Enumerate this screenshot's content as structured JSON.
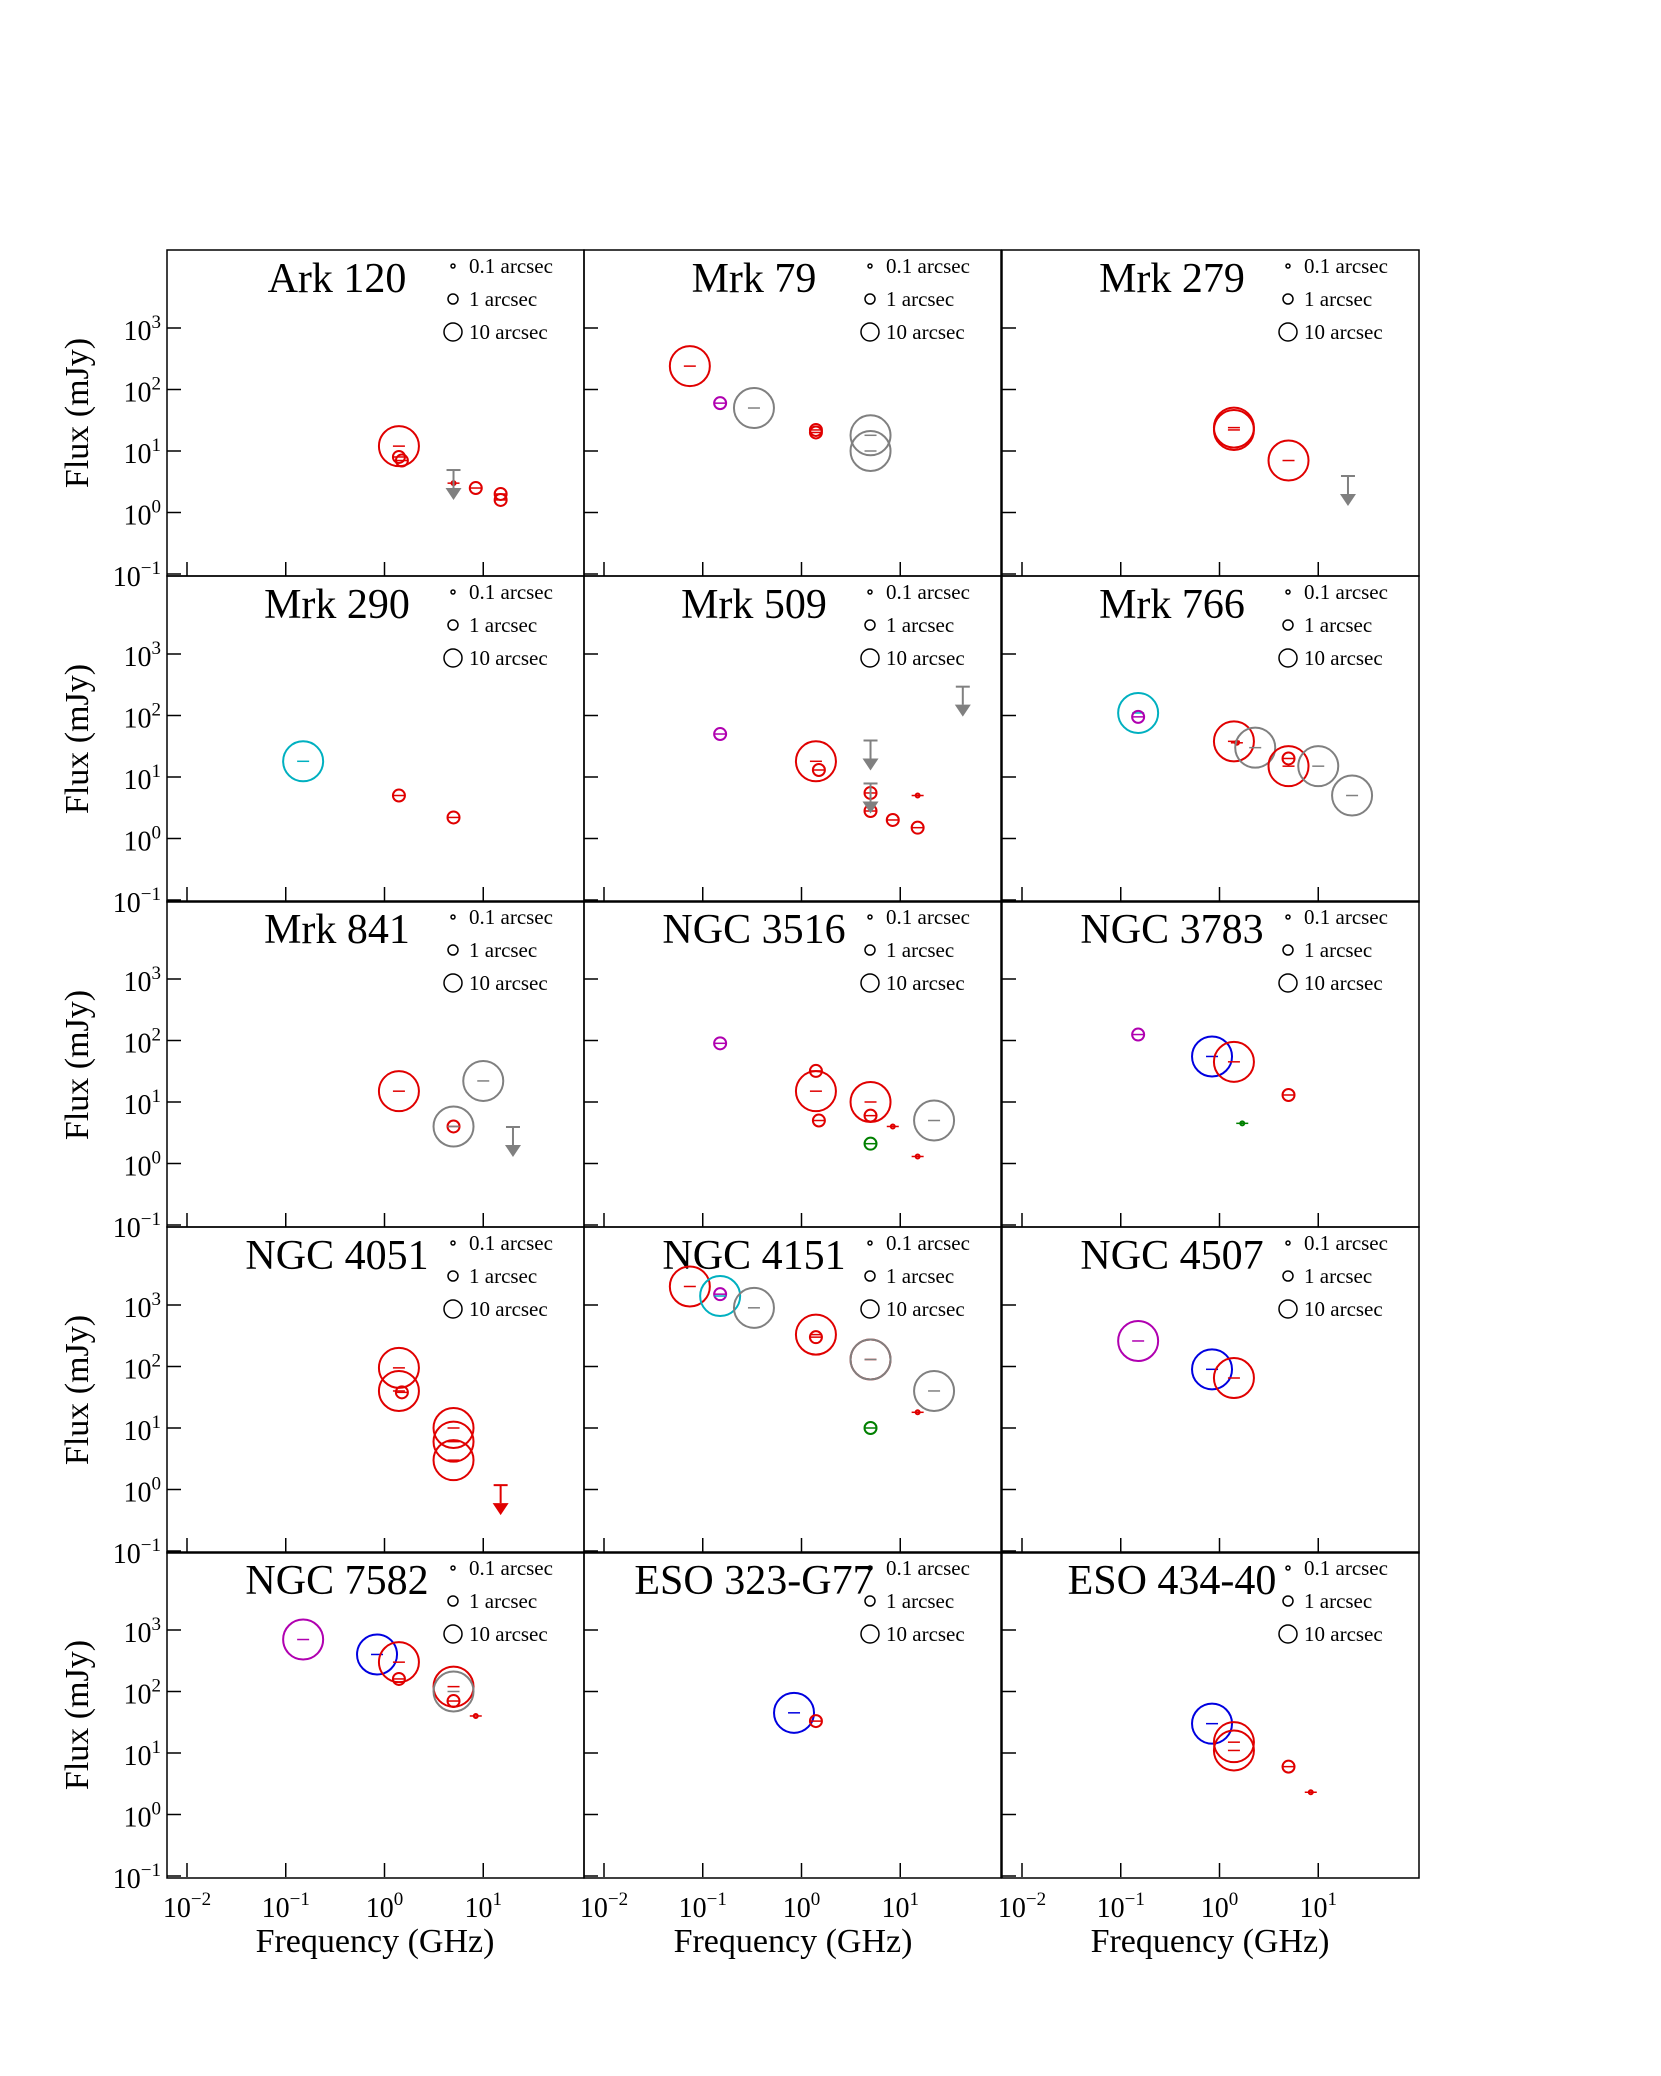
{
  "figure": {
    "x_axis_label": "Frequency (GHz)",
    "y_axis_label": "Flux (mJy)",
    "legend": [
      "0.1 arcsec",
      "1 arcsec",
      "10 arcsec"
    ]
  },
  "chart_data": [
    {
      "type": "scatter",
      "title": "Ark 120",
      "xscale": "log",
      "yscale": "log",
      "xlim": [
        0.01,
        100
      ],
      "ylim": [
        0.1,
        20000
      ],
      "points": [
        {
          "x": 1.4,
          "y": 12,
          "size": "10 arcsec",
          "color": "red"
        },
        {
          "x": 1.4,
          "y": 8,
          "size": "1 arcsec",
          "color": "red"
        },
        {
          "x": 1.5,
          "y": 7,
          "size": "1 arcsec",
          "color": "red"
        },
        {
          "x": 5,
          "y": 3,
          "size": "0.1 arcsec",
          "color": "red"
        },
        {
          "x": 5,
          "y": 2.5,
          "size": "upper limit",
          "color": "gray"
        },
        {
          "x": 8.4,
          "y": 2.5,
          "size": "1 arcsec",
          "color": "red"
        },
        {
          "x": 15,
          "y": 2,
          "size": "1 arcsec",
          "color": "red"
        },
        {
          "x": 15,
          "y": 1.6,
          "size": "1 arcsec",
          "color": "red"
        }
      ]
    },
    {
      "type": "scatter",
      "title": "Mrk 79",
      "xscale": "log",
      "yscale": "log",
      "xlim": [
        0.01,
        100
      ],
      "ylim": [
        0.1,
        20000
      ],
      "points": [
        {
          "x": 0.074,
          "y": 240,
          "size": "10 arcsec",
          "color": "red"
        },
        {
          "x": 0.15,
          "y": 60,
          "size": "1 arcsec",
          "color": "magenta"
        },
        {
          "x": 0.33,
          "y": 50,
          "size": "10 arcsec",
          "color": "gray"
        },
        {
          "x": 1.4,
          "y": 22,
          "size": "1 arcsec",
          "color": "red"
        },
        {
          "x": 1.4,
          "y": 20,
          "size": "1 arcsec",
          "color": "red"
        },
        {
          "x": 5,
          "y": 18,
          "size": "10 arcsec",
          "color": "gray"
        },
        {
          "x": 5,
          "y": 10,
          "size": "10 arcsec",
          "color": "gray"
        }
      ]
    },
    {
      "type": "scatter",
      "title": "Mrk 279",
      "xscale": "log",
      "yscale": "log",
      "xlim": [
        0.01,
        100
      ],
      "ylim": [
        0.1,
        20000
      ],
      "points": [
        {
          "x": 1.4,
          "y": 24,
          "size": "10 arcsec",
          "color": "red"
        },
        {
          "x": 1.4,
          "y": 22,
          "size": "10 arcsec",
          "color": "red"
        },
        {
          "x": 5,
          "y": 7,
          "size": "10 arcsec",
          "color": "red"
        },
        {
          "x": 20,
          "y": 2,
          "size": "upper limit",
          "color": "gray"
        }
      ]
    },
    {
      "type": "scatter",
      "title": "Mrk 290",
      "xscale": "log",
      "yscale": "log",
      "xlim": [
        0.01,
        100
      ],
      "ylim": [
        0.1,
        20000
      ],
      "points": [
        {
          "x": 0.15,
          "y": 18,
          "size": "10 arcsec",
          "color": "cyan"
        },
        {
          "x": 1.4,
          "y": 5,
          "size": "1 arcsec",
          "color": "red"
        },
        {
          "x": 5,
          "y": 2.2,
          "size": "1 arcsec",
          "color": "red"
        }
      ]
    },
    {
      "type": "scatter",
      "title": "Mrk 509",
      "xscale": "log",
      "yscale": "log",
      "xlim": [
        0.01,
        100
      ],
      "ylim": [
        0.1,
        20000
      ],
      "points": [
        {
          "x": 0.15,
          "y": 50,
          "size": "1 arcsec",
          "color": "magenta"
        },
        {
          "x": 1.4,
          "y": 18,
          "size": "10 arcsec",
          "color": "red"
        },
        {
          "x": 1.5,
          "y": 13,
          "size": "1 arcsec",
          "color": "red"
        },
        {
          "x": 5,
          "y": 5.5,
          "size": "1 arcsec",
          "color": "red"
        },
        {
          "x": 5,
          "y": 2.8,
          "size": "1 arcsec",
          "color": "red"
        },
        {
          "x": 8.4,
          "y": 2,
          "size": "1 arcsec",
          "color": "red"
        },
        {
          "x": 15,
          "y": 5,
          "size": "0.1 arcsec",
          "color": "red"
        },
        {
          "x": 15,
          "y": 1.5,
          "size": "1 arcsec",
          "color": "red"
        },
        {
          "x": 5,
          "y": 20,
          "size": "upper limit",
          "color": "gray"
        },
        {
          "x": 5,
          "y": 4,
          "size": "upper limit",
          "color": "gray"
        },
        {
          "x": 43,
          "y": 150,
          "size": "upper limit",
          "color": "gray"
        }
      ]
    },
    {
      "type": "scatter",
      "title": "Mrk 766",
      "xscale": "log",
      "yscale": "log",
      "xlim": [
        0.01,
        100
      ],
      "ylim": [
        0.1,
        20000
      ],
      "points": [
        {
          "x": 0.15,
          "y": 110,
          "size": "10 arcsec",
          "color": "cyan"
        },
        {
          "x": 0.15,
          "y": 95,
          "size": "1 arcsec",
          "color": "magenta"
        },
        {
          "x": 1.4,
          "y": 38,
          "size": "10 arcsec",
          "color": "red"
        },
        {
          "x": 1.5,
          "y": 36,
          "size": "0.1 arcsec",
          "color": "red"
        },
        {
          "x": 2.3,
          "y": 30,
          "size": "10 arcsec",
          "color": "gray"
        },
        {
          "x": 5,
          "y": 20,
          "size": "1 arcsec",
          "color": "red"
        },
        {
          "x": 5,
          "y": 15,
          "size": "10 arcsec",
          "color": "red"
        },
        {
          "x": 10,
          "y": 15,
          "size": "10 arcsec",
          "color": "gray"
        },
        {
          "x": 22,
          "y": 5,
          "size": "10 arcsec",
          "color": "gray"
        }
      ]
    },
    {
      "type": "scatter",
      "title": "Mrk 841",
      "xscale": "log",
      "yscale": "log",
      "xlim": [
        0.01,
        100
      ],
      "ylim": [
        0.1,
        20000
      ],
      "points": [
        {
          "x": 1.4,
          "y": 15,
          "size": "10 arcsec",
          "color": "red"
        },
        {
          "x": 5,
          "y": 4,
          "size": "1 arcsec",
          "color": "red"
        },
        {
          "x": 5,
          "y": 4,
          "size": "10 arcsec",
          "color": "gray"
        },
        {
          "x": 10,
          "y": 22,
          "size": "10 arcsec",
          "color": "gray"
        },
        {
          "x": 20,
          "y": 2,
          "size": "upper limit",
          "color": "gray"
        }
      ]
    },
    {
      "type": "scatter",
      "title": "NGC 3516",
      "xscale": "log",
      "yscale": "log",
      "xlim": [
        0.01,
        100
      ],
      "ylim": [
        0.1,
        20000
      ],
      "points": [
        {
          "x": 0.15,
          "y": 90,
          "size": "1 arcsec",
          "color": "magenta"
        },
        {
          "x": 1.4,
          "y": 32,
          "size": "1 arcsec",
          "color": "red"
        },
        {
          "x": 1.4,
          "y": 15,
          "size": "10 arcsec",
          "color": "red"
        },
        {
          "x": 1.5,
          "y": 5,
          "size": "1 arcsec",
          "color": "red"
        },
        {
          "x": 5,
          "y": 10,
          "size": "10 arcsec",
          "color": "red"
        },
        {
          "x": 5,
          "y": 6,
          "size": "1 arcsec",
          "color": "red"
        },
        {
          "x": 5,
          "y": 2.1,
          "size": "1 arcsec",
          "color": "green"
        },
        {
          "x": 8.4,
          "y": 4,
          "size": "0.1 arcsec",
          "color": "red"
        },
        {
          "x": 15,
          "y": 1.3,
          "size": "0.1 arcsec",
          "color": "red"
        },
        {
          "x": 22,
          "y": 5,
          "size": "10 arcsec",
          "color": "gray"
        }
      ]
    },
    {
      "type": "scatter",
      "title": "NGC 3783",
      "xscale": "log",
      "yscale": "log",
      "xlim": [
        0.01,
        100
      ],
      "ylim": [
        0.1,
        20000
      ],
      "points": [
        {
          "x": 0.15,
          "y": 125,
          "size": "1 arcsec",
          "color": "magenta"
        },
        {
          "x": 0.84,
          "y": 55,
          "size": "10 arcsec",
          "color": "blue"
        },
        {
          "x": 1.4,
          "y": 45,
          "size": "10 arcsec",
          "color": "red"
        },
        {
          "x": 1.7,
          "y": 4.5,
          "size": "0.1 arcsec",
          "color": "green"
        },
        {
          "x": 5,
          "y": 13,
          "size": "1 arcsec",
          "color": "red"
        }
      ]
    },
    {
      "type": "scatter",
      "title": "NGC 4051",
      "xscale": "log",
      "yscale": "log",
      "xlim": [
        0.01,
        100
      ],
      "ylim": [
        0.1,
        20000
      ],
      "points": [
        {
          "x": 1.4,
          "y": 95,
          "size": "10 arcsec",
          "color": "red"
        },
        {
          "x": 1.4,
          "y": 40,
          "size": "10 arcsec",
          "color": "red"
        },
        {
          "x": 1.5,
          "y": 38,
          "size": "1 arcsec",
          "color": "red"
        },
        {
          "x": 5,
          "y": 10,
          "size": "10 arcsec",
          "color": "red"
        },
        {
          "x": 5,
          "y": 6,
          "size": "10 arcsec",
          "color": "red"
        },
        {
          "x": 5,
          "y": 3,
          "size": "10 arcsec",
          "color": "red"
        },
        {
          "x": 15,
          "y": 0.6,
          "size": "upper limit",
          "color": "red"
        }
      ]
    },
    {
      "type": "scatter",
      "title": "NGC 4151",
      "xscale": "log",
      "yscale": "log",
      "xlim": [
        0.01,
        100
      ],
      "ylim": [
        0.1,
        20000
      ],
      "points": [
        {
          "x": 0.074,
          "y": 2000,
          "size": "10 arcsec",
          "color": "red"
        },
        {
          "x": 0.15,
          "y": 1500,
          "size": "1 arcsec",
          "color": "magenta"
        },
        {
          "x": 0.15,
          "y": 1400,
          "size": "10 arcsec",
          "color": "cyan"
        },
        {
          "x": 0.33,
          "y": 900,
          "size": "10 arcsec",
          "color": "gray"
        },
        {
          "x": 1.4,
          "y": 330,
          "size": "10 arcsec",
          "color": "red"
        },
        {
          "x": 1.4,
          "y": 300,
          "size": "1 arcsec",
          "color": "red"
        },
        {
          "x": 5,
          "y": 130,
          "size": "10 arcsec",
          "color": "red"
        },
        {
          "x": 5,
          "y": 130,
          "size": "10 arcsec",
          "color": "gray"
        },
        {
          "x": 5,
          "y": 10,
          "size": "1 arcsec",
          "color": "green"
        },
        {
          "x": 15,
          "y": 18,
          "size": "0.1 arcsec",
          "color": "red"
        },
        {
          "x": 22,
          "y": 40,
          "size": "10 arcsec",
          "color": "gray"
        }
      ]
    },
    {
      "type": "scatter",
      "title": "NGC 4507",
      "xscale": "log",
      "yscale": "log",
      "xlim": [
        0.01,
        100
      ],
      "ylim": [
        0.1,
        20000
      ],
      "points": [
        {
          "x": 0.15,
          "y": 260,
          "size": "10 arcsec",
          "color": "magenta"
        },
        {
          "x": 0.84,
          "y": 90,
          "size": "10 arcsec",
          "color": "blue"
        },
        {
          "x": 1.4,
          "y": 65,
          "size": "10 arcsec",
          "color": "red"
        }
      ]
    },
    {
      "type": "scatter",
      "title": "NGC 7582",
      "xscale": "log",
      "yscale": "log",
      "xlim": [
        0.01,
        100
      ],
      "ylim": [
        0.1,
        20000
      ],
      "points": [
        {
          "x": 0.15,
          "y": 700,
          "size": "10 arcsec",
          "color": "magenta"
        },
        {
          "x": 0.84,
          "y": 400,
          "size": "10 arcsec",
          "color": "blue"
        },
        {
          "x": 1.4,
          "y": 300,
          "size": "10 arcsec",
          "color": "red"
        },
        {
          "x": 1.4,
          "y": 160,
          "size": "1 arcsec",
          "color": "red"
        },
        {
          "x": 5,
          "y": 120,
          "size": "10 arcsec",
          "color": "red"
        },
        {
          "x": 5,
          "y": 100,
          "size": "10 arcsec",
          "color": "gray"
        },
        {
          "x": 5,
          "y": 70,
          "size": "1 arcsec",
          "color": "red"
        },
        {
          "x": 8.4,
          "y": 40,
          "size": "0.1 arcsec",
          "color": "red"
        }
      ]
    },
    {
      "type": "scatter",
      "title": "ESO 323-G77",
      "xscale": "log",
      "yscale": "log",
      "xlim": [
        0.01,
        100
      ],
      "ylim": [
        0.1,
        20000
      ],
      "points": [
        {
          "x": 0.84,
          "y": 45,
          "size": "10 arcsec",
          "color": "blue"
        },
        {
          "x": 1.4,
          "y": 33,
          "size": "1 arcsec",
          "color": "red"
        }
      ]
    },
    {
      "type": "scatter",
      "title": "ESO 434-40",
      "xscale": "log",
      "yscale": "log",
      "xlim": [
        0.01,
        100
      ],
      "ylim": [
        0.1,
        20000
      ],
      "points": [
        {
          "x": 0.84,
          "y": 30,
          "size": "10 arcsec",
          "color": "blue"
        },
        {
          "x": 1.4,
          "y": 15,
          "size": "10 arcsec",
          "color": "red"
        },
        {
          "x": 1.4,
          "y": 11,
          "size": "10 arcsec",
          "color": "red"
        },
        {
          "x": 5,
          "y": 6,
          "size": "1 arcsec",
          "color": "red"
        },
        {
          "x": 8.4,
          "y": 2.3,
          "size": "0.1 arcsec",
          "color": "red"
        }
      ]
    }
  ],
  "colors": {
    "red": "#e00000",
    "gray": "#808080",
    "magenta": "#b000b0",
    "cyan": "#00b0c0",
    "blue": "#0000e0",
    "green": "#008000"
  }
}
